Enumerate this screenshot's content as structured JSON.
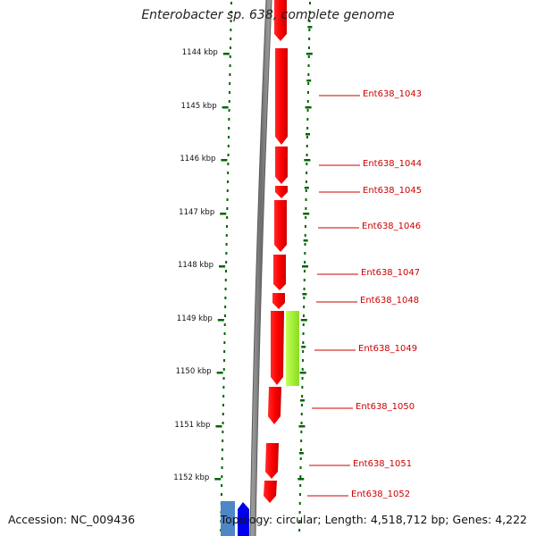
{
  "title": "Enterobacter sp. 638, complete genome",
  "accession": "Accession: NC_009436",
  "topology_info": "Topology: circular; Length: 4,518,712 bp; Genes: 4,222",
  "colors": {
    "backbone": "#808080",
    "forward_gene": "#ff0000",
    "other_gene": "#aaff33",
    "blue_gene": "#0000ff",
    "steelblue_gene": "#4f86c6",
    "tick": "#006400",
    "gene_label": "#cc0000"
  },
  "scale_labels": [
    "1144 kbp",
    "1145 kbp",
    "1146 kbp",
    "1147 kbp",
    "1148 kbp",
    "1149 kbp",
    "1150 kbp",
    "1151 kbp",
    "1152 kbp"
  ],
  "gene_labels": [
    "Ent638_1043",
    "Ent638_1044",
    "Ent638_1045",
    "Ent638_1046",
    "Ent638_1047",
    "Ent638_1048",
    "Ent638_1049",
    "Ent638_1050",
    "Ent638_1051",
    "Ent638_1052"
  ]
}
